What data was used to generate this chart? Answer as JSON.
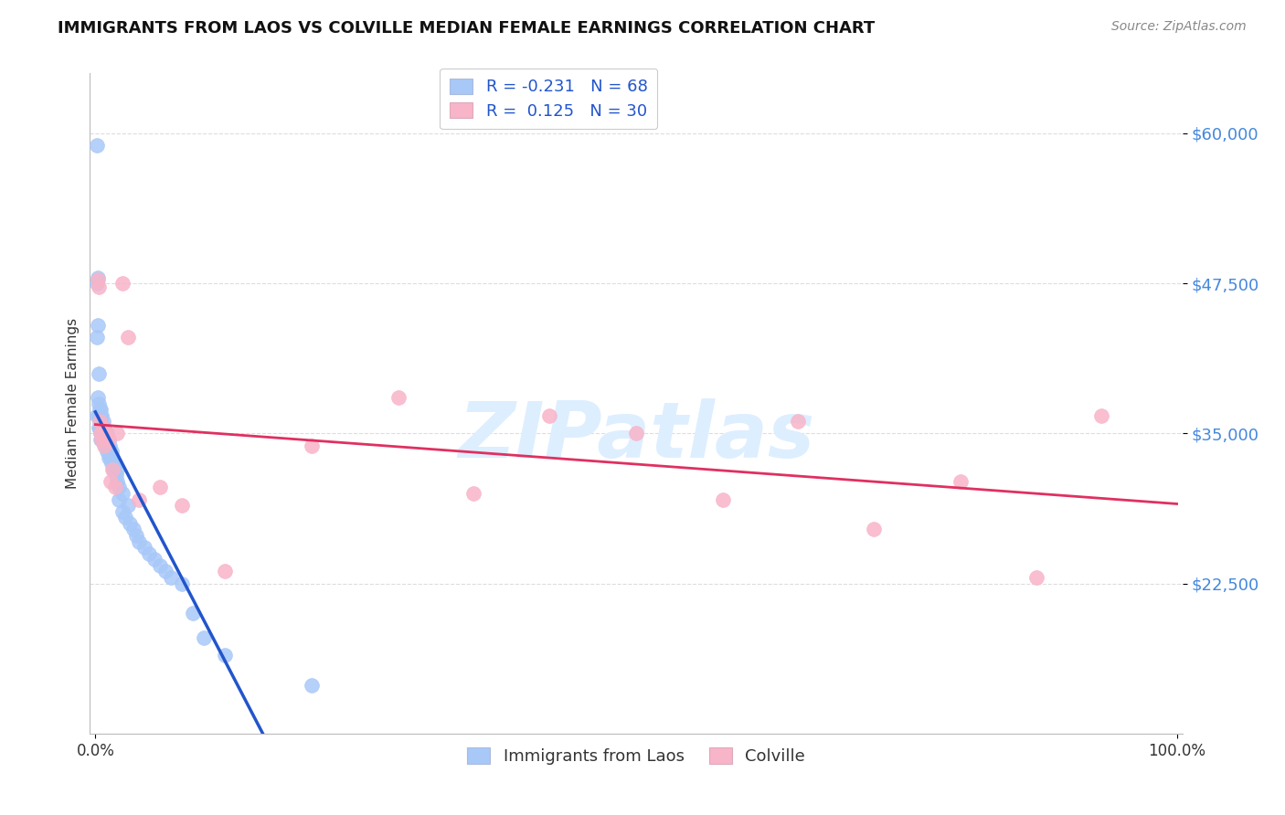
{
  "title": "IMMIGRANTS FROM LAOS VS COLVILLE MEDIAN FEMALE EARNINGS CORRELATION CHART",
  "source": "Source: ZipAtlas.com",
  "ylabel": "Median Female Earnings",
  "yticks": [
    22500,
    35000,
    47500,
    60000
  ],
  "ytick_labels": [
    "$22,500",
    "$35,000",
    "$47,500",
    "$60,000"
  ],
  "ylim": [
    10000,
    65000
  ],
  "xlim": [
    -0.005,
    1.005
  ],
  "legend1_R": "R = -0.231",
  "legend1_N": "N = 68",
  "legend2_R": "R =  0.125",
  "legend2_N": "N = 30",
  "legend_bottom_label1": "Immigrants from Laos",
  "legend_bottom_label2": "Colville",
  "blue_scatter_x": [
    0.001,
    0.001,
    0.001,
    0.001,
    0.002,
    0.002,
    0.002,
    0.003,
    0.003,
    0.003,
    0.003,
    0.004,
    0.004,
    0.004,
    0.005,
    0.005,
    0.005,
    0.005,
    0.005,
    0.006,
    0.006,
    0.006,
    0.006,
    0.007,
    0.007,
    0.007,
    0.008,
    0.008,
    0.008,
    0.009,
    0.009,
    0.01,
    0.01,
    0.011,
    0.011,
    0.012,
    0.012,
    0.013,
    0.014,
    0.015,
    0.015,
    0.016,
    0.017,
    0.018,
    0.019,
    0.02,
    0.02,
    0.022,
    0.022,
    0.025,
    0.025,
    0.028,
    0.03,
    0.032,
    0.035,
    0.038,
    0.04,
    0.045,
    0.05,
    0.055,
    0.06,
    0.065,
    0.07,
    0.08,
    0.09,
    0.1,
    0.12,
    0.2
  ],
  "blue_scatter_y": [
    59000,
    47500,
    43000,
    36500,
    48000,
    44000,
    38000,
    40000,
    37500,
    36500,
    35500,
    37000,
    36000,
    35500,
    37000,
    36500,
    35500,
    35000,
    34500,
    36500,
    35800,
    35200,
    34500,
    36000,
    35500,
    34800,
    35500,
    35000,
    34200,
    35000,
    34000,
    34800,
    33800,
    35000,
    33500,
    34500,
    33000,
    34000,
    33000,
    33500,
    32500,
    33000,
    32000,
    32500,
    31500,
    32000,
    31000,
    30500,
    29500,
    30000,
    28500,
    28000,
    29000,
    27500,
    27000,
    26500,
    26000,
    25500,
    25000,
    24500,
    24000,
    23500,
    23000,
    22500,
    20000,
    18000,
    16500,
    14000
  ],
  "pink_scatter_x": [
    0.002,
    0.003,
    0.004,
    0.005,
    0.006,
    0.007,
    0.008,
    0.01,
    0.012,
    0.014,
    0.016,
    0.018,
    0.02,
    0.025,
    0.03,
    0.04,
    0.06,
    0.08,
    0.12,
    0.2,
    0.28,
    0.35,
    0.42,
    0.5,
    0.58,
    0.65,
    0.72,
    0.8,
    0.87,
    0.93
  ],
  "pink_scatter_y": [
    47800,
    47200,
    36000,
    35000,
    34500,
    35500,
    34000,
    35000,
    34500,
    31000,
    32000,
    30500,
    35000,
    47500,
    43000,
    29500,
    30500,
    29000,
    23500,
    34000,
    38000,
    30000,
    36500,
    35000,
    29500,
    36000,
    27000,
    31000,
    23000,
    36500
  ],
  "blue_color": "#a8c8f8",
  "pink_color": "#f8b4c8",
  "blue_line_color": "#2255cc",
  "pink_line_color": "#e03060",
  "blue_dash_color": "#99bbee",
  "watermark_text": "ZIPatlas",
  "watermark_color": "#ddeeff",
  "background_color": "#ffffff",
  "grid_color": "#dddddd",
  "ytick_color": "#4488dd",
  "xtick_color": "#333333"
}
